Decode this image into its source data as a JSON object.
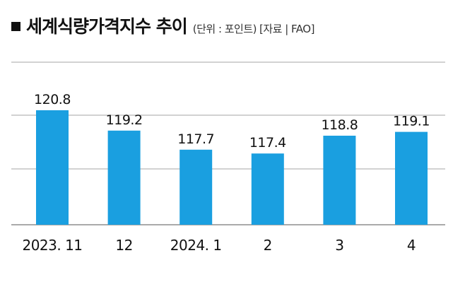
{
  "chart_data": {
    "type": "bar",
    "title": "세계식량가격지수 추이",
    "unit": "(단위 : 포인트)",
    "source": "[자료 | FAO]",
    "categories": [
      "2023. 11",
      "12",
      "2024. 1",
      "2",
      "3",
      "4"
    ],
    "values": [
      120.8,
      119.2,
      117.7,
      117.4,
      118.8,
      119.1
    ],
    "value_labels": [
      "120.8",
      "119.2",
      "117.7",
      "117.4",
      "118.8",
      "119.1"
    ],
    "bar_color": "#1a9fe0",
    "grid": true,
    "legend": "none"
  }
}
